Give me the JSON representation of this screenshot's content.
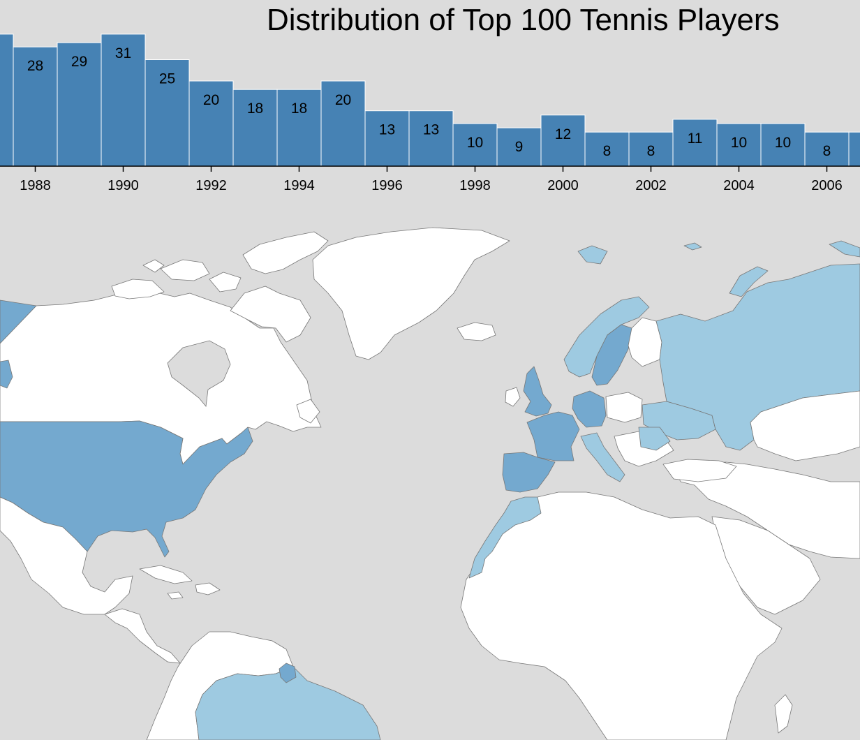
{
  "title": "Distribution of Top 100 Tennis Players",
  "colors": {
    "background": "#dcdcdc",
    "bar": "#4682b4",
    "country_none": "#ffffff",
    "country_low": "#9ecae1",
    "country_mid": "#74a9cf",
    "country_high": "#5b93c4"
  },
  "chart_data": {
    "type": "bar",
    "title": "Distribution of Top 100 Tennis Players",
    "categories": [
      "1987",
      "1988",
      "1989",
      "1990",
      "1991",
      "1992",
      "1993",
      "1994",
      "1995",
      "1996",
      "1997",
      "1998",
      "1999",
      "2000",
      "2001",
      "2002",
      "2003",
      "2004",
      "2005",
      "2006",
      "2007"
    ],
    "values": [
      31,
      28,
      29,
      31,
      25,
      20,
      18,
      18,
      20,
      13,
      13,
      10,
      9,
      12,
      8,
      8,
      11,
      10,
      10,
      8,
      8
    ],
    "value_labels": [
      "",
      "28",
      "29",
      "31",
      "25",
      "20",
      "18",
      "18",
      "20",
      "13",
      "13",
      "10",
      "9",
      "12",
      "8",
      "8",
      "11",
      "10",
      "10",
      "8",
      ""
    ],
    "x_ticks": [
      "1988",
      "1990",
      "1992",
      "1994",
      "1996",
      "1998",
      "2000",
      "2002",
      "2004",
      "2006"
    ],
    "xlabel": "",
    "ylabel": ""
  },
  "map": {
    "countries": [
      {
        "name": "United States",
        "shade": "mid"
      },
      {
        "name": "Canada",
        "shade": "none"
      },
      {
        "name": "Alaska",
        "shade": "mid"
      },
      {
        "name": "Greenland",
        "shade": "none"
      },
      {
        "name": "Mexico",
        "shade": "none"
      },
      {
        "name": "Spain",
        "shade": "mid"
      },
      {
        "name": "France",
        "shade": "mid"
      },
      {
        "name": "Germany",
        "shade": "mid"
      },
      {
        "name": "United Kingdom",
        "shade": "mid"
      },
      {
        "name": "Sweden",
        "shade": "mid"
      },
      {
        "name": "Norway",
        "shade": "low"
      },
      {
        "name": "Italy",
        "shade": "low"
      },
      {
        "name": "Russia",
        "shade": "low"
      },
      {
        "name": "Ukraine",
        "shade": "low"
      },
      {
        "name": "Morocco",
        "shade": "low"
      },
      {
        "name": "Brazil",
        "shade": "low"
      },
      {
        "name": "Suriname",
        "shade": "low"
      }
    ]
  }
}
